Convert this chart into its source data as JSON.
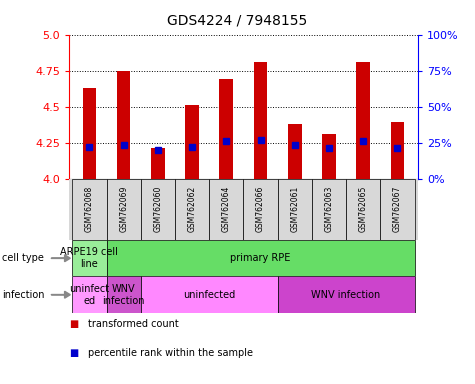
{
  "title": "GDS4224 / 7948155",
  "samples": [
    "GSM762068",
    "GSM762069",
    "GSM762060",
    "GSM762062",
    "GSM762064",
    "GSM762066",
    "GSM762061",
    "GSM762063",
    "GSM762065",
    "GSM762067"
  ],
  "transformed_counts": [
    4.63,
    4.75,
    4.21,
    4.51,
    4.69,
    4.81,
    4.38,
    4.31,
    4.81,
    4.39
  ],
  "percentile_ranks": [
    22,
    23,
    20,
    22,
    26,
    27,
    23,
    21,
    26,
    21
  ],
  "ylim": [
    4.0,
    5.0
  ],
  "yticks": [
    4.0,
    4.25,
    4.5,
    4.75,
    5.0
  ],
  "right_yticks": [
    0,
    25,
    50,
    75,
    100
  ],
  "right_yticklabels": [
    "0%",
    "25%",
    "50%",
    "75%",
    "100%"
  ],
  "bar_color": "#cc0000",
  "dot_color": "#0000cc",
  "bar_bottom": 4.0,
  "bar_width": 0.4,
  "cell_type_spans": [
    {
      "start": 0,
      "end": 1,
      "color": "#99ee99",
      "label": "ARPE19 cell\nline"
    },
    {
      "start": 1,
      "end": 10,
      "color": "#66dd66",
      "label": "primary RPE"
    }
  ],
  "infection_spans": [
    {
      "start": 0,
      "end": 1,
      "color": "#ff99ff",
      "label": "uninfect\ned"
    },
    {
      "start": 1,
      "end": 2,
      "color": "#cc55cc",
      "label": "WNV\ninfection"
    },
    {
      "start": 2,
      "end": 6,
      "color": "#ff88ff",
      "label": "uninfected"
    },
    {
      "start": 6,
      "end": 10,
      "color": "#cc44cc",
      "label": "WNV infection"
    }
  ],
  "sample_bg_color": "#d8d8d8",
  "title_fontsize": 10,
  "tick_fontsize": 8,
  "label_fontsize": 7,
  "sample_fontsize": 5.5,
  "legend_items": [
    {
      "color": "#cc0000",
      "label": "transformed count"
    },
    {
      "color": "#0000cc",
      "label": "percentile rank within the sample"
    }
  ]
}
